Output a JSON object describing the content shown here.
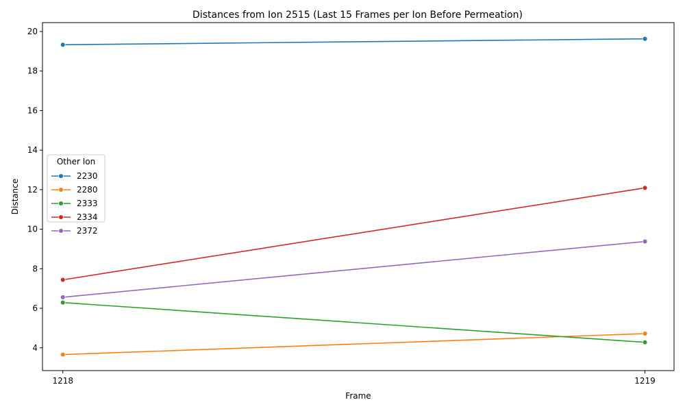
{
  "chart_data": {
    "type": "line",
    "title": "Distances from Ion 2515 (Last 15 Frames per Ion Before Permeation)",
    "xlabel": "Frame",
    "ylabel": "Distance",
    "x": [
      1218,
      1219
    ],
    "xticks": [
      "1218",
      "1219"
    ],
    "xlim": [
      1217.965,
      1219.05
    ],
    "ylim": [
      2.85,
      20.45
    ],
    "yticks": [
      4,
      6,
      8,
      10,
      12,
      14,
      16,
      18,
      20
    ],
    "grid": false,
    "legend": {
      "title": "Other Ion",
      "placement": "center-left"
    },
    "series": [
      {
        "name": "2230",
        "color": "#1f77b4",
        "values": [
          19.33,
          19.63
        ]
      },
      {
        "name": "2280",
        "color": "#ff7f0e",
        "values": [
          3.66,
          4.72
        ]
      },
      {
        "name": "2333",
        "color": "#2ca02c",
        "values": [
          6.29,
          4.28
        ]
      },
      {
        "name": "2334",
        "color": "#d62728",
        "values": [
          7.44,
          12.09
        ]
      },
      {
        "name": "2372",
        "color": "#9467bd",
        "values": [
          6.56,
          9.38
        ]
      }
    ]
  }
}
